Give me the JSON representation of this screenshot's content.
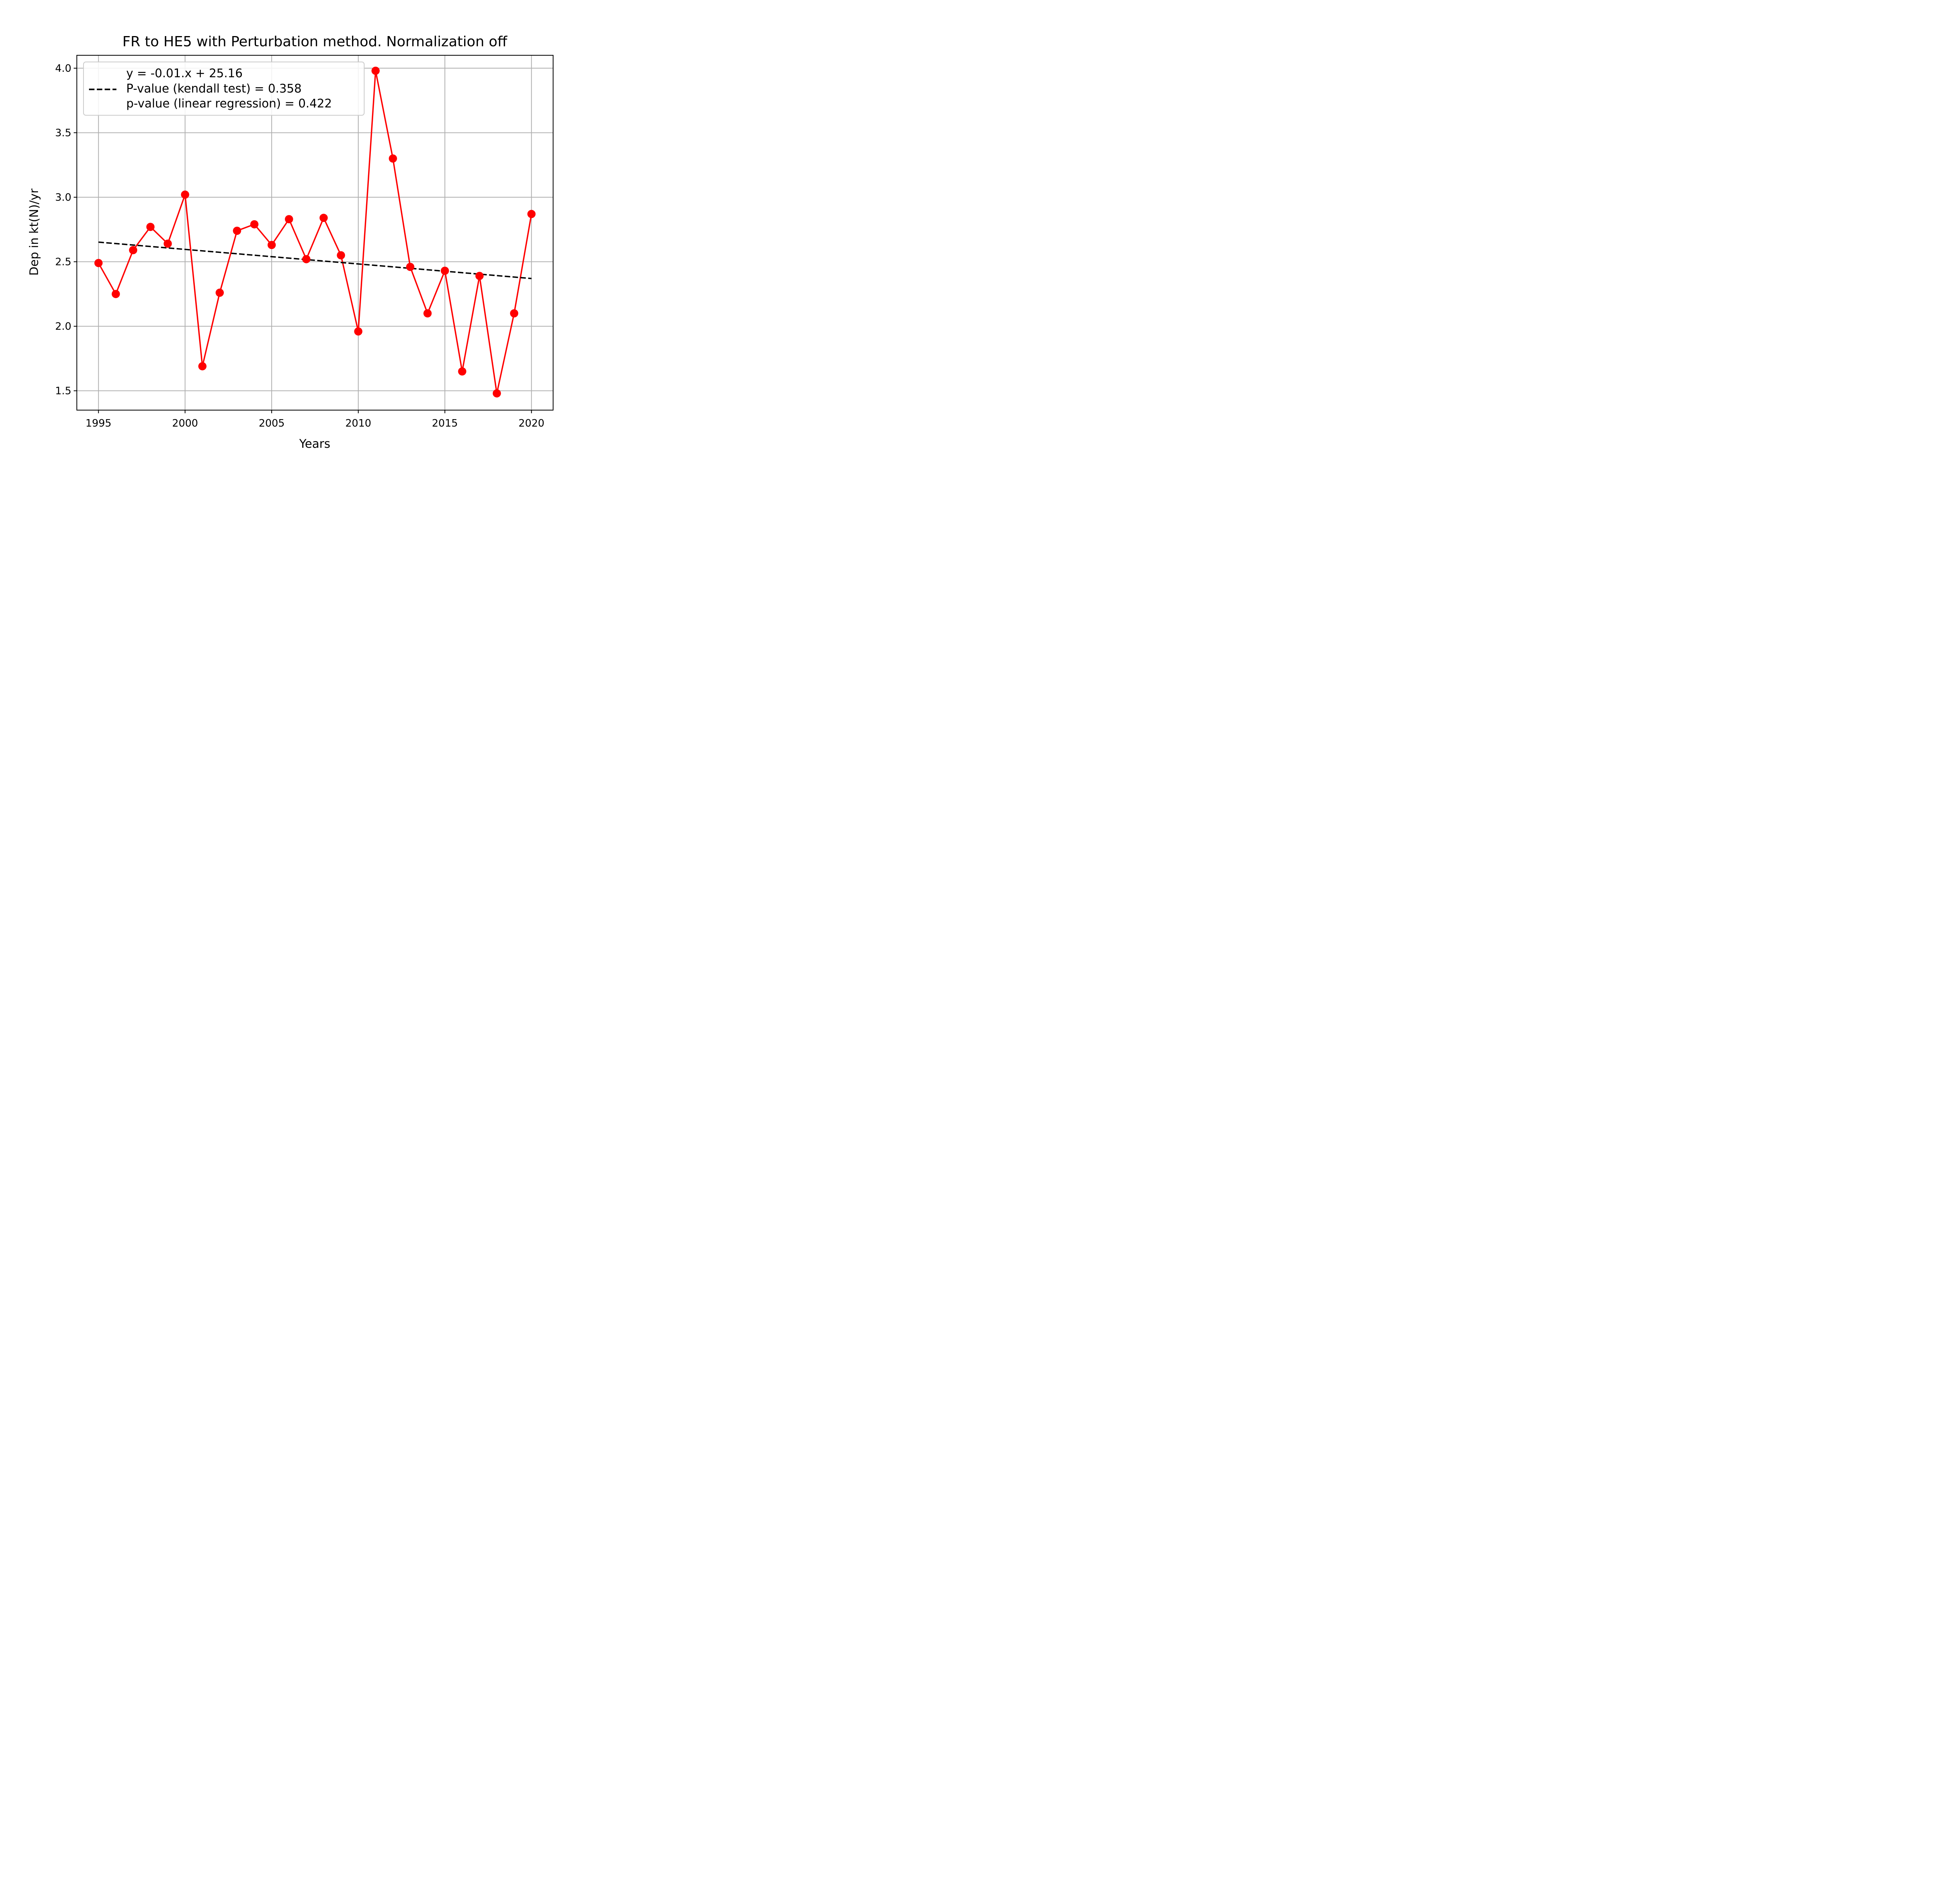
{
  "chart_data": {
    "type": "line",
    "title": "FR to HE5 with Perturbation method. Normalization off",
    "xlabel": "Years",
    "ylabel": "Dep in kt(N)/yr",
    "xlim": [
      1993.75,
      2021.25
    ],
    "ylim": [
      1.35,
      4.1
    ],
    "x_ticks": [
      1995,
      2000,
      2005,
      2010,
      2015,
      2020
    ],
    "x_tick_labels": [
      "1995",
      "2000",
      "2005",
      "2010",
      "2015",
      "2020"
    ],
    "y_ticks": [
      1.5,
      2.0,
      2.5,
      3.0,
      3.5,
      4.0
    ],
    "y_tick_labels": [
      "1.5",
      "2.0",
      "2.5",
      "3.0",
      "3.5",
      "4.0"
    ],
    "grid": true,
    "legend_position": "top-left",
    "series": [
      {
        "color": "#ff0000",
        "marker": "circle",
        "x": [
          1995,
          1996,
          1997,
          1998,
          1999,
          2000,
          2001,
          2002,
          2003,
          2004,
          2005,
          2006,
          2007,
          2008,
          2009,
          2010,
          2011,
          2012,
          2013,
          2014,
          2015,
          2016,
          2017,
          2018,
          2019,
          2020
        ],
        "y": [
          2.49,
          2.25,
          2.59,
          2.77,
          2.64,
          3.02,
          1.69,
          2.26,
          2.74,
          2.79,
          2.63,
          2.83,
          2.52,
          2.84,
          2.55,
          1.96,
          3.98,
          3.3,
          2.46,
          2.1,
          2.43,
          1.65,
          2.39,
          1.48,
          2.1,
          2.87
        ]
      },
      {
        "name": "y = -0.01.x + 25.16\nP-value (kendall test) = 0.358\np-value (linear regression) = 0.422",
        "color": "#000000",
        "style": "dashed",
        "x": [
          1995,
          2020
        ],
        "y": [
          2.652,
          2.37
        ]
      }
    ],
    "legend_lines": [
      "y = -0.01.x + 25.16",
      "P-value (kendall test) = 0.358",
      "p-value (linear regression) = 0.422"
    ]
  }
}
